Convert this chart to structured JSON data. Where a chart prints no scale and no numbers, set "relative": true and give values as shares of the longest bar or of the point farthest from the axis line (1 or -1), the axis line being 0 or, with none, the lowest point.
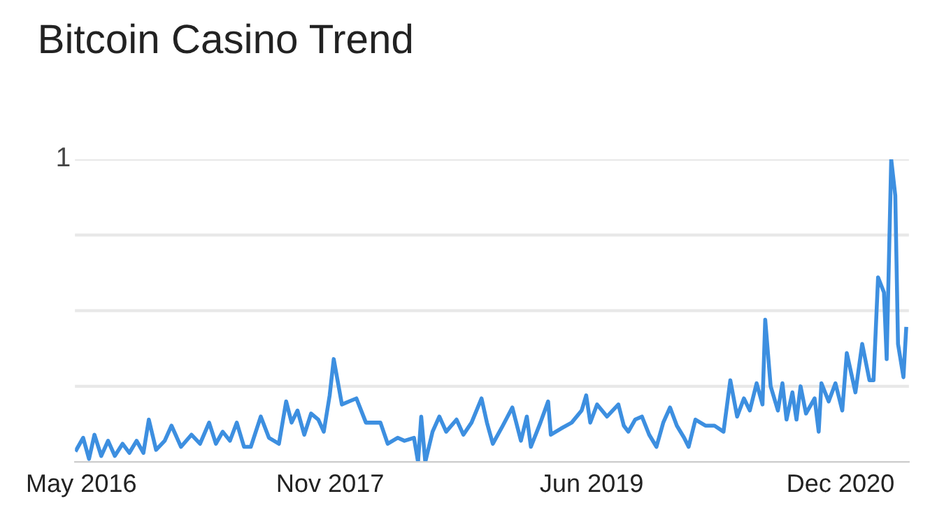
{
  "chart_data": {
    "type": "line",
    "title": "Bitcoin Casino Trend",
    "relative": true,
    "grid": "y",
    "legend": false,
    "marker": "none",
    "line_style": "solid",
    "annotations": [
      "1"
    ],
    "xlim": [
      "2016-05-01",
      "2021-05-15"
    ],
    "xticks": [
      {
        "value": "2016-05-15",
        "label": "May 2016"
      },
      {
        "value": "2017-11-15",
        "label": "Nov 2017"
      },
      {
        "value": "2019-06-15",
        "label": "Jun 2019"
      },
      {
        "value": "2020-12-15",
        "label": "Dec 2020"
      }
    ],
    "x": [
      "2016-05-04",
      "2016-05-19",
      "2016-06-01",
      "2016-06-13",
      "2016-06-28",
      "2016-07-13",
      "2016-07-28",
      "2016-08-14",
      "2016-08-29",
      "2016-09-14",
      "2016-09-29",
      "2016-10-11",
      "2016-10-27",
      "2016-11-15",
      "2016-11-30",
      "2016-12-21",
      "2017-01-13",
      "2017-02-01",
      "2017-02-21",
      "2017-03-08",
      "2017-03-23",
      "2017-04-08",
      "2017-04-23",
      "2017-05-09",
      "2017-05-24",
      "2017-06-15",
      "2017-07-03",
      "2017-07-25",
      "2017-08-10",
      "2017-08-22",
      "2017-09-04",
      "2017-09-19",
      "2017-10-04",
      "2017-10-20",
      "2017-11-01",
      "2017-11-14",
      "2017-11-23",
      "2017-12-11",
      "2017-12-27",
      "2018-01-12",
      "2018-02-02",
      "2018-02-20",
      "2018-03-06",
      "2018-03-22",
      "2018-04-13",
      "2018-04-28",
      "2018-05-19",
      "2018-05-28",
      "2018-06-04",
      "2018-06-13",
      "2018-06-29",
      "2018-07-14",
      "2018-07-29",
      "2018-08-21",
      "2018-09-05",
      "2018-09-23",
      "2018-10-15",
      "2018-10-27",
      "2018-11-09",
      "2018-12-01",
      "2018-12-22",
      "2019-01-10",
      "2019-01-23",
      "2019-02-01",
      "2019-02-22",
      "2019-03-11",
      "2019-03-17",
      "2019-04-08",
      "2019-05-02",
      "2019-05-24",
      "2019-06-03",
      "2019-06-12",
      "2019-06-27",
      "2019-07-19",
      "2019-08-13",
      "2019-08-25",
      "2019-09-04",
      "2019-09-19",
      "2019-10-04",
      "2019-10-20",
      "2019-11-05",
      "2019-11-20",
      "2019-12-05",
      "2019-12-20",
      "2020-01-05",
      "2020-01-15",
      "2020-01-30",
      "2020-02-21",
      "2020-03-12",
      "2020-04-01",
      "2020-04-16",
      "2020-05-01",
      "2020-05-16",
      "2020-05-29",
      "2020-06-13",
      "2020-06-26",
      "2020-07-02",
      "2020-07-14",
      "2020-07-30",
      "2020-08-09",
      "2020-08-18",
      "2020-08-31",
      "2020-09-09",
      "2020-09-18",
      "2020-09-30",
      "2020-10-19",
      "2020-10-28",
      "2020-11-03",
      "2020-11-19",
      "2020-12-04",
      "2020-12-19",
      "2020-12-29",
      "2021-01-17",
      "2021-02-01",
      "2021-02-17",
      "2021-02-26",
      "2021-03-08",
      "2021-03-21",
      "2021-03-27",
      "2021-04-06",
      "2021-04-15",
      "2021-04-21",
      "2021-05-03",
      "2021-05-09"
    ],
    "series": [
      {
        "color": "#3d8fe0",
        "values": [
          0.04,
          0.08,
          0.01,
          0.09,
          0.02,
          0.07,
          0.02,
          0.06,
          0.03,
          0.07,
          0.03,
          0.14,
          0.04,
          0.07,
          0.12,
          0.05,
          0.09,
          0.06,
          0.13,
          0.06,
          0.1,
          0.07,
          0.13,
          0.05,
          0.05,
          0.15,
          0.08,
          0.06,
          0.2,
          0.13,
          0.17,
          0.09,
          0.16,
          0.14,
          0.1,
          0.22,
          0.34,
          0.19,
          0.2,
          0.21,
          0.13,
          0.13,
          0.13,
          0.06,
          0.08,
          0.07,
          0.08,
          0.0,
          0.15,
          0.0,
          0.1,
          0.15,
          0.1,
          0.14,
          0.09,
          0.13,
          0.21,
          0.13,
          0.06,
          0.12,
          0.18,
          0.07,
          0.15,
          0.05,
          0.13,
          0.2,
          0.09,
          0.11,
          0.13,
          0.17,
          0.22,
          0.13,
          0.19,
          0.15,
          0.19,
          0.12,
          0.1,
          0.14,
          0.15,
          0.09,
          0.05,
          0.13,
          0.18,
          0.12,
          0.08,
          0.05,
          0.14,
          0.12,
          0.12,
          0.1,
          0.27,
          0.15,
          0.21,
          0.17,
          0.26,
          0.19,
          0.47,
          0.25,
          0.17,
          0.26,
          0.14,
          0.23,
          0.14,
          0.25,
          0.16,
          0.21,
          0.1,
          0.26,
          0.2,
          0.26,
          0.17,
          0.36,
          0.23,
          0.39,
          0.27,
          0.27,
          0.61,
          0.56,
          0.34,
          1.0,
          0.88,
          0.39,
          0.28,
          0.44
        ]
      }
    ]
  }
}
